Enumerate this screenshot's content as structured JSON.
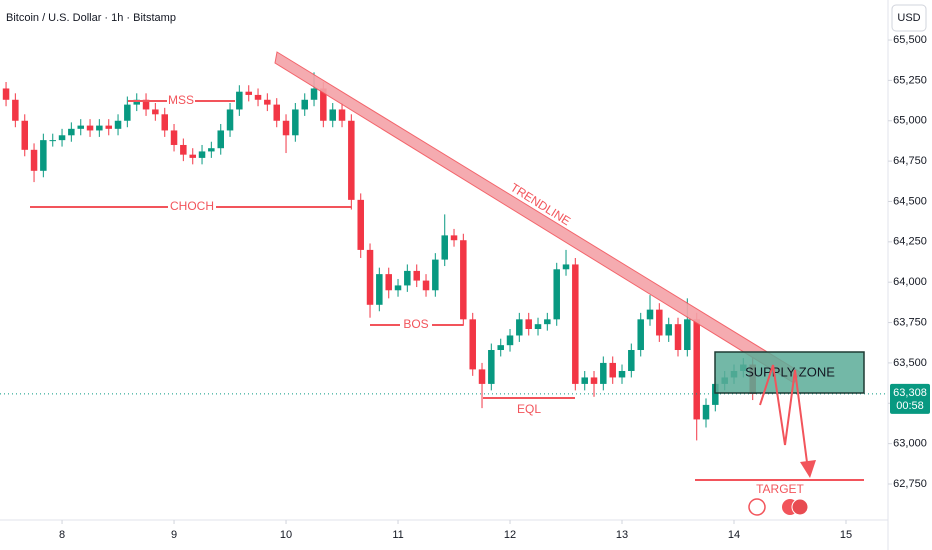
{
  "chart_data": {
    "type": "candlestick",
    "title": "Bitcoin / U.S. Dollar · 1h · Bitstamp",
    "currency": "USD",
    "x": [
      7.5,
      7.583,
      7.667,
      7.75,
      7.833,
      7.917,
      8,
      8.083,
      8.167,
      8.25,
      8.333,
      8.417,
      8.5,
      8.583,
      8.667,
      8.75,
      8.833,
      8.917,
      9,
      9.083,
      9.167,
      9.25,
      9.333,
      9.417,
      9.5,
      9.583,
      9.667,
      9.75,
      9.833,
      9.917,
      10,
      10.083,
      10.167,
      10.25,
      10.333,
      10.417,
      10.5,
      10.583,
      10.667,
      10.75,
      10.833,
      10.917,
      11,
      11.083,
      11.167,
      11.25,
      11.333,
      11.417,
      11.5,
      11.583,
      11.667,
      11.75,
      11.833,
      11.917,
      12,
      12.083,
      12.167,
      12.25,
      12.333,
      12.417,
      12.5,
      12.583,
      12.667,
      12.75,
      12.833,
      12.917,
      13,
      13.083,
      13.167,
      13.25,
      13.333,
      13.417,
      13.5,
      13.583,
      13.667,
      13.75,
      13.833,
      13.917,
      14,
      14.083,
      14.167
    ],
    "open": [
      65200,
      65130,
      65000,
      64820,
      64690,
      64880,
      64880,
      64910,
      64950,
      64970,
      64940,
      64970,
      64950,
      65000,
      65100,
      65130,
      65070,
      65040,
      64940,
      64850,
      64790,
      64770,
      64810,
      64830,
      64940,
      65070,
      65180,
      65160,
      65130,
      65100,
      65000,
      64910,
      65070,
      65130,
      65200,
      65000,
      65070,
      65000,
      64510,
      64200,
      63860,
      64050,
      63950,
      63980,
      64070,
      64010,
      63950,
      64140,
      64290,
      64260,
      63770,
      63460,
      63370,
      63580,
      63610,
      63670,
      63770,
      63710,
      63740,
      63770,
      64080,
      64110,
      63370,
      63410,
      63370,
      63500,
      63410,
      63450,
      63580,
      63770,
      63830,
      63670,
      63740,
      63580,
      63770,
      63150,
      63240,
      63370,
      63410,
      63450,
      63490
    ],
    "high": [
      65240,
      65170,
      65040,
      64860,
      64920,
      64920,
      64950,
      64990,
      65010,
      65010,
      65010,
      65010,
      65040,
      65150,
      65170,
      65170,
      65110,
      65080,
      64980,
      64890,
      64830,
      64850,
      64870,
      64980,
      65110,
      65220,
      65220,
      65200,
      65170,
      65140,
      65040,
      65110,
      65170,
      65300,
      65240,
      65110,
      65110,
      65040,
      64550,
      64240,
      64090,
      64090,
      64020,
      64110,
      64110,
      64050,
      64180,
      64420,
      64330,
      64300,
      63810,
      63500,
      63620,
      63650,
      63710,
      63810,
      63810,
      63780,
      63810,
      64120,
      64200,
      64150,
      63450,
      63450,
      63540,
      63540,
      63490,
      63620,
      63810,
      63920,
      63870,
      63780,
      63780,
      63900,
      63810,
      63280,
      63410,
      63450,
      63490,
      63530,
      63530
    ],
    "low": [
      65090,
      64960,
      64780,
      64620,
      64650,
      64840,
      64840,
      64870,
      64910,
      64900,
      64900,
      64910,
      64910,
      64960,
      65060,
      65030,
      65000,
      64900,
      64810,
      64750,
      64730,
      64730,
      64770,
      64790,
      64900,
      65030,
      65120,
      65090,
      65060,
      64960,
      64800,
      64870,
      65030,
      65090,
      64960,
      64960,
      64960,
      64450,
      64150,
      63780,
      63820,
      63900,
      63910,
      63940,
      63970,
      63910,
      63910,
      64100,
      64220,
      63730,
      63420,
      63220,
      63330,
      63540,
      63570,
      63630,
      63670,
      63670,
      63700,
      63730,
      64040,
      63330,
      63330,
      63290,
      63330,
      63370,
      63370,
      63410,
      63540,
      63730,
      63630,
      63630,
      63540,
      63540,
      63020,
      63100,
      63200,
      63330,
      63370,
      63410,
      63270
    ],
    "close": [
      65130,
      65000,
      64820,
      64690,
      64880,
      64880,
      64910,
      64950,
      64970,
      64940,
      64970,
      64950,
      65000,
      65100,
      65130,
      65070,
      65040,
      64940,
      64850,
      64790,
      64770,
      64810,
      64830,
      64940,
      65070,
      65180,
      65160,
      65130,
      65100,
      65000,
      64910,
      65070,
      65130,
      65200,
      65000,
      65070,
      65000,
      64510,
      64200,
      63860,
      64050,
      63950,
      63980,
      64070,
      64010,
      63950,
      64140,
      64290,
      64260,
      63770,
      63460,
      63370,
      63580,
      63610,
      63670,
      63770,
      63710,
      63740,
      63770,
      64080,
      64110,
      63370,
      63410,
      63370,
      63500,
      63410,
      63450,
      63580,
      63770,
      63830,
      63670,
      63740,
      63580,
      63770,
      63150,
      63240,
      63370,
      63410,
      63450,
      63490,
      63308
    ],
    "up_color": "#089981",
    "down_color": "#f23645",
    "xlim": [
      7.446,
      15.375
    ],
    "ylim": [
      62527,
      65748
    ],
    "xticks": [
      8,
      9,
      10,
      11,
      12,
      13,
      14,
      15
    ],
    "yticks": [
      {
        "value": 62750,
        "label": "62,750"
      },
      {
        "value": 63000,
        "label": "63,000"
      },
      {
        "value": 63250,
        "label": "63,250"
      },
      {
        "value": 63500,
        "label": "63,500"
      },
      {
        "value": 63750,
        "label": "63,750"
      },
      {
        "value": 64000,
        "label": "64,000"
      },
      {
        "value": 64250,
        "label": "64,250"
      },
      {
        "value": 64500,
        "label": "64,500"
      },
      {
        "value": 64750,
        "label": "64,750"
      },
      {
        "value": 65000,
        "label": "65,000"
      },
      {
        "value": 65250,
        "label": "65,250"
      },
      {
        "value": 65500,
        "label": "65,500"
      }
    ],
    "last_price": {
      "value": 63308,
      "label": "63,308"
    },
    "countdown": "00:58",
    "annotations": [
      "MSS",
      "CHOCH",
      "BOS",
      "EQL",
      "TRENDLINE",
      "SUPPLY ZONE",
      "TARGET"
    ]
  }
}
